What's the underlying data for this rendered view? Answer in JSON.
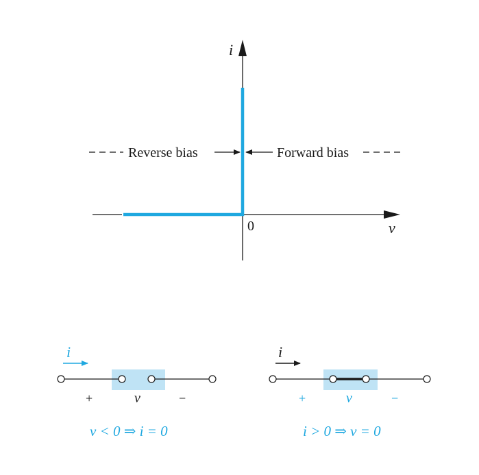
{
  "colors": {
    "ink": "#1a1a1a",
    "accent": "#1fa8e0",
    "highlight": "#bfe3f5"
  },
  "iv_plot": {
    "y_axis_label": "i",
    "x_axis_label": "v",
    "origin_label": "0",
    "reverse_bias_label": "Reverse bias",
    "forward_bias_label": "Forward bias"
  },
  "circuits": {
    "reverse": {
      "current_label": "i",
      "plus_label": "+",
      "voltage_label": "v",
      "minus_label": "−",
      "condition": "v < 0 ⇒ i = 0"
    },
    "forward": {
      "current_label": "i",
      "plus_label": "+",
      "voltage_label": "v",
      "minus_label": "−",
      "condition": "i > 0 ⇒ v = 0"
    }
  }
}
